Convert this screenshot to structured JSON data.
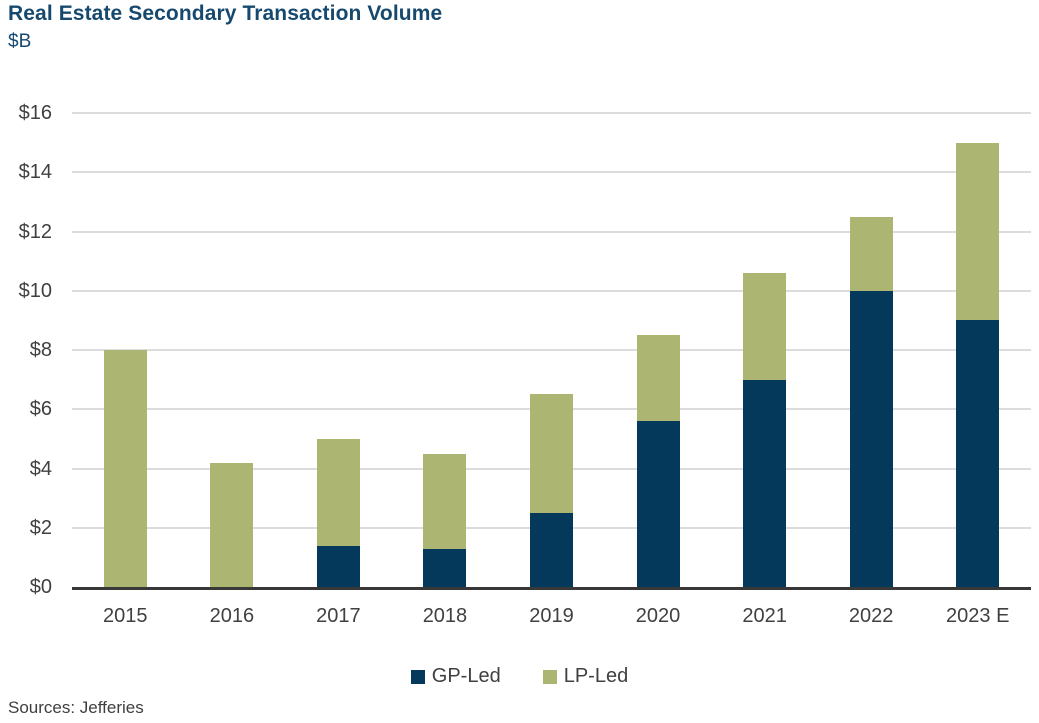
{
  "header": {
    "title": "Real Estate Secondary Transaction Volume",
    "subtitle": "$B"
  },
  "footer": {
    "source": "Sources: Jefferies"
  },
  "colors": {
    "gp_led": "#04395B",
    "lp_led": "#ADB572",
    "title_text": "#17496F",
    "axis_text": "#404040",
    "gridline": "#DCDCDC",
    "axis_line": "#383838"
  },
  "chart_data": {
    "type": "bar",
    "stacked": true,
    "title": "Real Estate Secondary Transaction Volume",
    "ylabel": "$B",
    "xlabel": "",
    "categories": [
      "2015",
      "2016",
      "2017",
      "2018",
      "2019",
      "2020",
      "2021",
      "2022",
      "2023 E"
    ],
    "series": [
      {
        "name": "GP-Led",
        "color": "#04395B",
        "values": [
          0,
          0,
          1.4,
          1.3,
          2.5,
          5.6,
          7.0,
          10.0,
          9.0
        ]
      },
      {
        "name": "LP-Led",
        "color": "#ADB572",
        "values": [
          8.0,
          4.2,
          3.6,
          3.2,
          4.0,
          2.9,
          3.6,
          2.5,
          6.0
        ]
      }
    ],
    "totals": [
      8.0,
      4.2,
      5.0,
      4.5,
      6.5,
      8.5,
      10.6,
      12.5,
      15.0
    ],
    "ylim": [
      0,
      16
    ],
    "ytick_step": 2,
    "ytick_prefix": "$",
    "grid": true,
    "legend_position": "bottom"
  }
}
